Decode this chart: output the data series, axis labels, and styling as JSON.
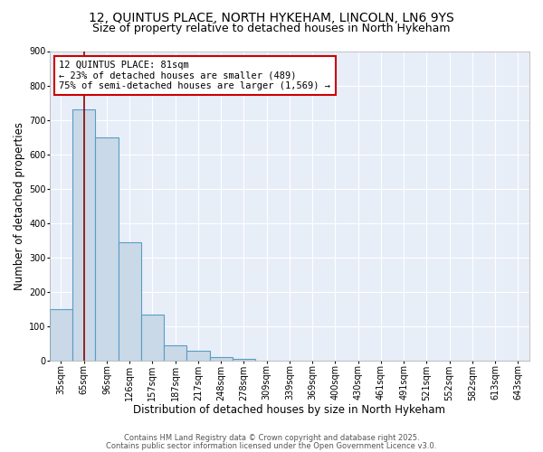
{
  "title_line1": "12, QUINTUS PLACE, NORTH HYKEHAM, LINCOLN, LN6 9YS",
  "title_line2": "Size of property relative to detached houses in North Hykeham",
  "xlabel": "Distribution of detached houses by size in North Hykeham",
  "ylabel": "Number of detached properties",
  "bin_labels": [
    "35sqm",
    "65sqm",
    "96sqm",
    "126sqm",
    "157sqm",
    "187sqm",
    "217sqm",
    "248sqm",
    "278sqm",
    "309sqm",
    "339sqm",
    "369sqm",
    "400sqm",
    "430sqm",
    "461sqm",
    "491sqm",
    "521sqm",
    "552sqm",
    "582sqm",
    "613sqm",
    "643sqm"
  ],
  "bin_values": [
    150,
    730,
    650,
    345,
    135,
    45,
    30,
    10,
    6,
    0,
    0,
    0,
    0,
    0,
    0,
    0,
    0,
    0,
    0,
    0,
    0
  ],
  "bar_color": "#c9d9e8",
  "bar_edge_color": "#5a9cc5",
  "property_bin_index": 1,
  "vline_color": "#8b0000",
  "annotation_text": "12 QUINTUS PLACE: 81sqm\n← 23% of detached houses are smaller (489)\n75% of semi-detached houses are larger (1,569) →",
  "annotation_box_color": "white",
  "annotation_box_edge": "#cc0000",
  "ylim": [
    0,
    900
  ],
  "yticks": [
    0,
    100,
    200,
    300,
    400,
    500,
    600,
    700,
    800,
    900
  ],
  "background_color": "#e8eef8",
  "grid_color": "#ffffff",
  "footer_line1": "Contains HM Land Registry data © Crown copyright and database right 2025.",
  "footer_line2": "Contains public sector information licensed under the Open Government Licence v3.0.",
  "title_fontsize": 10,
  "subtitle_fontsize": 9,
  "axis_label_fontsize": 8.5,
  "tick_fontsize": 7,
  "annotation_fontsize": 7.5,
  "footer_fontsize": 6
}
